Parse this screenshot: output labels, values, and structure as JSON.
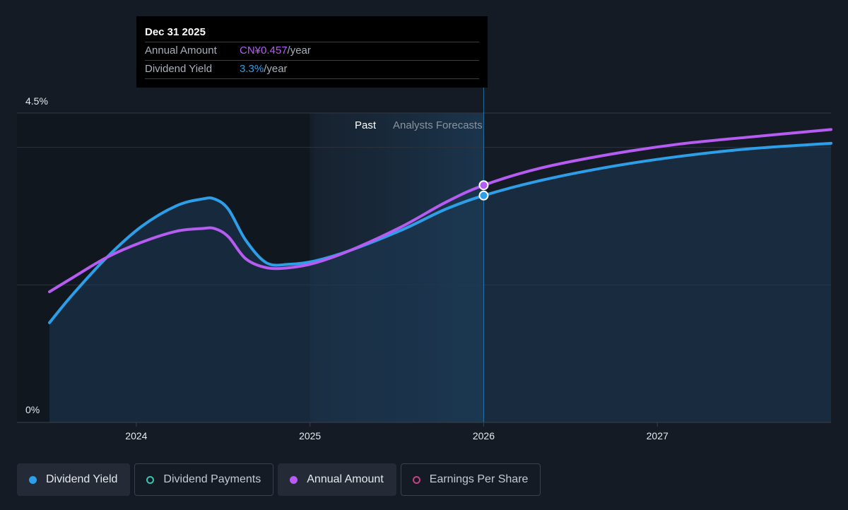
{
  "tooltip": {
    "date": "Dec 31 2025",
    "rows": [
      {
        "label": "Annual Amount",
        "value": "CN¥0.457",
        "unit": "/year"
      },
      {
        "label": "Dividend Yield",
        "value": "3.3%",
        "unit": "/year"
      }
    ]
  },
  "regions": {
    "past": "Past",
    "forecast": "Analysts Forecasts"
  },
  "legend": [
    {
      "label": "Dividend Yield",
      "active": true
    },
    {
      "label": "Dividend Payments",
      "active": false
    },
    {
      "label": "Annual Amount",
      "active": true
    },
    {
      "label": "Earnings Per Share",
      "active": false
    }
  ],
  "colors": {
    "dividend_yield": "#2d9fe8",
    "annual_amount": "#b65cf2",
    "dividend_payments": "#3cc2b3",
    "earnings_per_share": "#c93f86",
    "background": "#151b24"
  },
  "chart_data": {
    "type": "line",
    "y_tick_labels": [
      "0%",
      "4.5%"
    ],
    "ylim": [
      0,
      4.5
    ],
    "x_tick_labels": [
      "2024",
      "2025",
      "2026",
      "2027"
    ],
    "xlim": [
      2023.47,
      2027.97
    ],
    "past_region": [
      2024.97,
      2025.97
    ],
    "marker_x": 2025.97,
    "gridlines_y": [
      0,
      2.0,
      4.0,
      4.5
    ],
    "series": [
      {
        "name": "Dividend Yield",
        "points": [
          [
            2023.47,
            1.45
          ],
          [
            2023.6,
            1.85
          ],
          [
            2023.8,
            2.4
          ],
          [
            2024.0,
            2.85
          ],
          [
            2024.2,
            3.15
          ],
          [
            2024.35,
            3.25
          ],
          [
            2024.42,
            3.25
          ],
          [
            2024.5,
            3.1
          ],
          [
            2024.6,
            2.65
          ],
          [
            2024.72,
            2.32
          ],
          [
            2024.85,
            2.3
          ],
          [
            2025.0,
            2.35
          ],
          [
            2025.2,
            2.5
          ],
          [
            2025.5,
            2.8
          ],
          [
            2025.75,
            3.1
          ],
          [
            2025.97,
            3.3
          ],
          [
            2026.3,
            3.52
          ],
          [
            2026.7,
            3.72
          ],
          [
            2027.1,
            3.87
          ],
          [
            2027.5,
            3.98
          ],
          [
            2027.97,
            4.06
          ]
        ]
      },
      {
        "name": "Annual Amount",
        "points": [
          [
            2023.47,
            1.9
          ],
          [
            2023.6,
            2.1
          ],
          [
            2023.8,
            2.4
          ],
          [
            2024.0,
            2.62
          ],
          [
            2024.2,
            2.78
          ],
          [
            2024.35,
            2.82
          ],
          [
            2024.42,
            2.82
          ],
          [
            2024.5,
            2.7
          ],
          [
            2024.6,
            2.38
          ],
          [
            2024.72,
            2.25
          ],
          [
            2024.85,
            2.25
          ],
          [
            2025.0,
            2.32
          ],
          [
            2025.2,
            2.5
          ],
          [
            2025.5,
            2.85
          ],
          [
            2025.75,
            3.2
          ],
          [
            2025.97,
            3.45
          ],
          [
            2026.3,
            3.7
          ],
          [
            2026.7,
            3.9
          ],
          [
            2027.1,
            4.05
          ],
          [
            2027.5,
            4.15
          ],
          [
            2027.97,
            4.26
          ]
        ]
      }
    ]
  }
}
